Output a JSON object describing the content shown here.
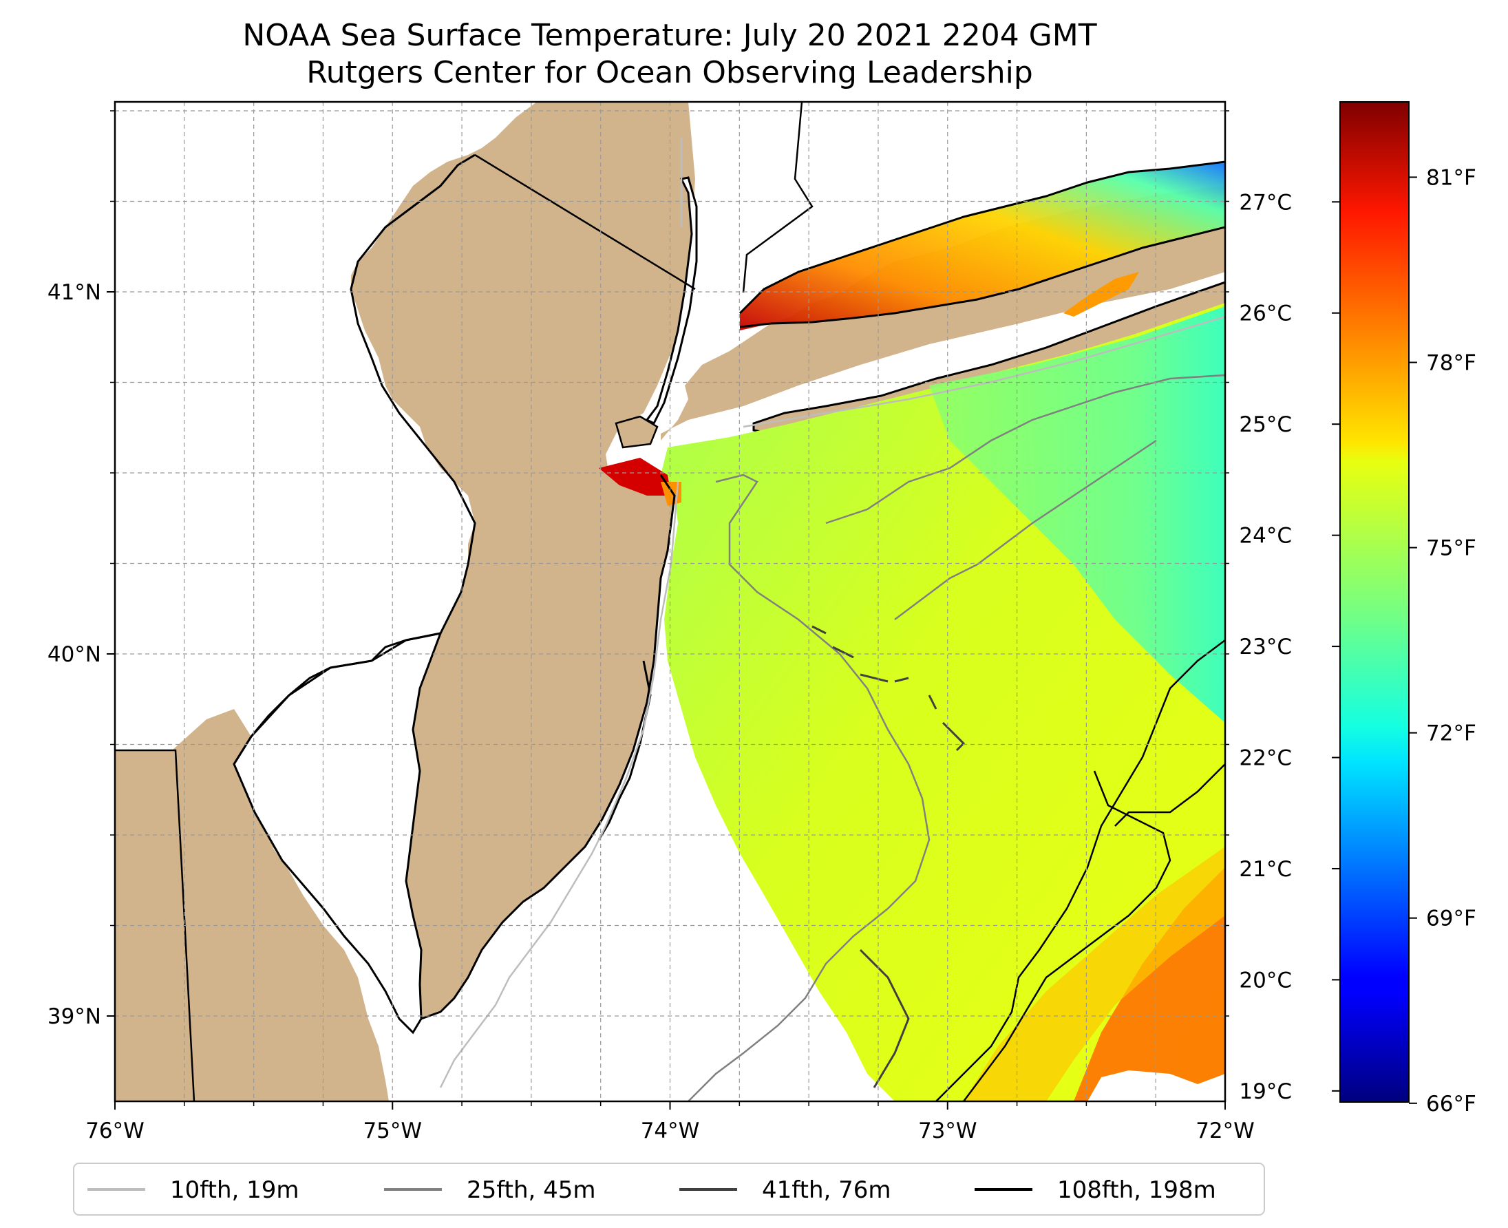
{
  "title": {
    "line1": "NOAA Sea Surface Temperature: July 20 2021 2204 GMT",
    "line2": "Rutgers Center for Ocean Observing Leadership"
  },
  "map": {
    "lon_range": [
      -76,
      -72
    ],
    "lat_range": [
      38.75,
      41.5
    ],
    "x_ticks": [
      "76°W",
      "75°W",
      "74°W",
      "73°W",
      "72°W"
    ],
    "y_ticks": [
      "41°N",
      "40°N",
      "39°N"
    ],
    "y_tick_values": [
      41,
      40,
      39
    ],
    "gridlines": true,
    "land_color": "#d2b48c",
    "water_color": "#ffffff"
  },
  "colorbar": {
    "colormap": "jet",
    "celsius_ticks": [
      "27°C",
      "26°C",
      "25°C",
      "24°C",
      "23°C",
      "22°C",
      "21°C",
      "20°C",
      "19°C"
    ],
    "celsius_values": [
      27,
      26,
      25,
      24,
      23,
      22,
      21,
      20,
      19
    ],
    "fahrenheit_ticks": [
      "81°F",
      "78°F",
      "75°F",
      "72°F",
      "69°F",
      "66°F"
    ],
    "fahrenheit_values": [
      81,
      78,
      75,
      72,
      69,
      66
    ],
    "range_celsius": [
      18.9,
      27.9
    ]
  },
  "legend": {
    "items": [
      {
        "label": "10fth, 19m",
        "color": "#bdbdbd"
      },
      {
        "label": "25fth, 45m",
        "color": "#808080"
      },
      {
        "label": "41fth, 76m",
        "color": "#404040"
      },
      {
        "label": "108fth, 198m",
        "color": "#000000"
      }
    ]
  }
}
